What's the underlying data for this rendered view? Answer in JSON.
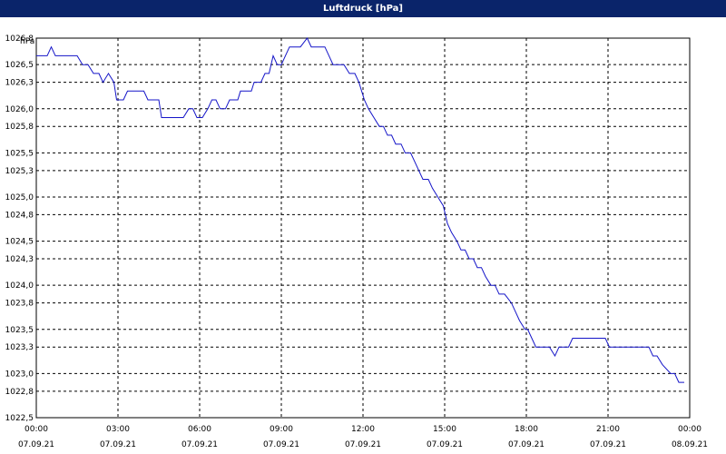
{
  "window": {
    "title": "Luftdruck [hPa]"
  },
  "colors": {
    "titlebar": "#0a246a",
    "line": "#1414c8",
    "grid": "#000000"
  },
  "chart_data": {
    "type": "line",
    "title": "Luftdruck [hPa]",
    "ylabel": "hPa",
    "xlabel": "",
    "ylim": [
      1022.5,
      1026.8
    ],
    "xlim_hours": [
      0,
      24
    ],
    "grid": true,
    "y_ticks": [
      {
        "value": 1026.8,
        "label": "1026,8"
      },
      {
        "value": 1026.5,
        "label": "1026,5"
      },
      {
        "value": 1026.3,
        "label": "1026,3"
      },
      {
        "value": 1026.0,
        "label": "1026,0"
      },
      {
        "value": 1025.8,
        "label": "1025,8"
      },
      {
        "value": 1025.5,
        "label": "1025,5"
      },
      {
        "value": 1025.3,
        "label": "1025,3"
      },
      {
        "value": 1025.0,
        "label": "1025,0"
      },
      {
        "value": 1024.8,
        "label": "1024,8"
      },
      {
        "value": 1024.5,
        "label": "1024,5"
      },
      {
        "value": 1024.3,
        "label": "1024,3"
      },
      {
        "value": 1024.0,
        "label": "1024,0"
      },
      {
        "value": 1023.8,
        "label": "1023,8"
      },
      {
        "value": 1023.5,
        "label": "1023,5"
      },
      {
        "value": 1023.3,
        "label": "1023,3"
      },
      {
        "value": 1023.0,
        "label": "1023,0"
      },
      {
        "value": 1022.8,
        "label": "1022,8"
      },
      {
        "value": 1022.5,
        "label": "1022,5"
      }
    ],
    "x_ticks": [
      {
        "hour": 0,
        "time": "00:00",
        "date": "07.09.21"
      },
      {
        "hour": 3,
        "time": "03:00",
        "date": "07.09.21"
      },
      {
        "hour": 6,
        "time": "06:00",
        "date": "07.09.21"
      },
      {
        "hour": 9,
        "time": "09:00",
        "date": "07.09.21"
      },
      {
        "hour": 12,
        "time": "12:00",
        "date": "07.09.21"
      },
      {
        "hour": 15,
        "time": "15:00",
        "date": "07.09.21"
      },
      {
        "hour": 18,
        "time": "18:00",
        "date": "07.09.21"
      },
      {
        "hour": 21,
        "time": "21:00",
        "date": "07.09.21"
      },
      {
        "hour": 24,
        "time": "00:00",
        "date": "08.09.21"
      }
    ],
    "series": [
      {
        "points": [
          [
            0,
            1026.6
          ],
          [
            0.4,
            1026.6
          ],
          [
            0.55,
            1026.7
          ],
          [
            0.7,
            1026.6
          ],
          [
            1.5,
            1026.6
          ],
          [
            1.7,
            1026.5
          ],
          [
            1.9,
            1026.5
          ],
          [
            2.1,
            1026.4
          ],
          [
            2.3,
            1026.4
          ],
          [
            2.45,
            1026.3
          ],
          [
            2.65,
            1026.4
          ],
          [
            2.85,
            1026.3
          ],
          [
            2.95,
            1026.1
          ],
          [
            3.2,
            1026.1
          ],
          [
            3.35,
            1026.2
          ],
          [
            3.6,
            1026.2
          ],
          [
            3.95,
            1026.2
          ],
          [
            4.1,
            1026.1
          ],
          [
            4.5,
            1026.1
          ],
          [
            4.6,
            1025.9
          ],
          [
            5.4,
            1025.9
          ],
          [
            5.6,
            1026.0
          ],
          [
            5.75,
            1026.0
          ],
          [
            5.9,
            1025.9
          ],
          [
            6.1,
            1025.9
          ],
          [
            6.3,
            1026.0
          ],
          [
            6.45,
            1026.1
          ],
          [
            6.6,
            1026.1
          ],
          [
            6.75,
            1026.0
          ],
          [
            6.95,
            1026.0
          ],
          [
            7.1,
            1026.1
          ],
          [
            7.4,
            1026.1
          ],
          [
            7.5,
            1026.2
          ],
          [
            7.9,
            1026.2
          ],
          [
            8.0,
            1026.3
          ],
          [
            8.25,
            1026.3
          ],
          [
            8.4,
            1026.4
          ],
          [
            8.55,
            1026.4
          ],
          [
            8.7,
            1026.6
          ],
          [
            8.85,
            1026.5
          ],
          [
            9.0,
            1026.5
          ],
          [
            9.15,
            1026.6
          ],
          [
            9.3,
            1026.7
          ],
          [
            9.7,
            1026.7
          ],
          [
            9.95,
            1026.8
          ],
          [
            10.1,
            1026.7
          ],
          [
            10.6,
            1026.7
          ],
          [
            10.75,
            1026.6
          ],
          [
            10.9,
            1026.5
          ],
          [
            11.3,
            1026.5
          ],
          [
            11.5,
            1026.4
          ],
          [
            11.7,
            1026.4
          ],
          [
            11.85,
            1026.3
          ],
          [
            12.05,
            1026.1
          ],
          [
            12.2,
            1026.0
          ],
          [
            12.4,
            1025.9
          ],
          [
            12.6,
            1025.8
          ],
          [
            12.75,
            1025.8
          ],
          [
            12.9,
            1025.7
          ],
          [
            13.05,
            1025.7
          ],
          [
            13.2,
            1025.6
          ],
          [
            13.4,
            1025.6
          ],
          [
            13.55,
            1025.5
          ],
          [
            13.75,
            1025.5
          ],
          [
            13.9,
            1025.4
          ],
          [
            14.05,
            1025.3
          ],
          [
            14.2,
            1025.2
          ],
          [
            14.4,
            1025.2
          ],
          [
            14.55,
            1025.1
          ],
          [
            14.75,
            1025.0
          ],
          [
            14.95,
            1024.9
          ],
          [
            15.1,
            1024.7
          ],
          [
            15.25,
            1024.6
          ],
          [
            15.45,
            1024.5
          ],
          [
            15.6,
            1024.4
          ],
          [
            15.75,
            1024.4
          ],
          [
            15.9,
            1024.3
          ],
          [
            16.05,
            1024.3
          ],
          [
            16.2,
            1024.2
          ],
          [
            16.35,
            1024.2
          ],
          [
            16.5,
            1024.1
          ],
          [
            16.7,
            1024.0
          ],
          [
            16.85,
            1024.0
          ],
          [
            17.0,
            1023.9
          ],
          [
            17.2,
            1023.9
          ],
          [
            17.45,
            1023.8
          ],
          [
            17.6,
            1023.7
          ],
          [
            17.75,
            1023.6
          ],
          [
            17.95,
            1023.5
          ],
          [
            18.05,
            1023.5
          ],
          [
            18.2,
            1023.4
          ],
          [
            18.35,
            1023.3
          ],
          [
            18.85,
            1023.3
          ],
          [
            19.05,
            1023.2
          ],
          [
            19.2,
            1023.3
          ],
          [
            19.55,
            1023.3
          ],
          [
            19.7,
            1023.4
          ],
          [
            20.9,
            1023.4
          ],
          [
            21.05,
            1023.3
          ],
          [
            22.5,
            1023.3
          ],
          [
            22.65,
            1023.2
          ],
          [
            22.8,
            1023.2
          ],
          [
            23.0,
            1023.1
          ],
          [
            23.3,
            1023.0
          ],
          [
            23.45,
            1023.0
          ],
          [
            23.6,
            1022.9
          ],
          [
            23.8,
            1022.9
          ]
        ]
      }
    ]
  }
}
